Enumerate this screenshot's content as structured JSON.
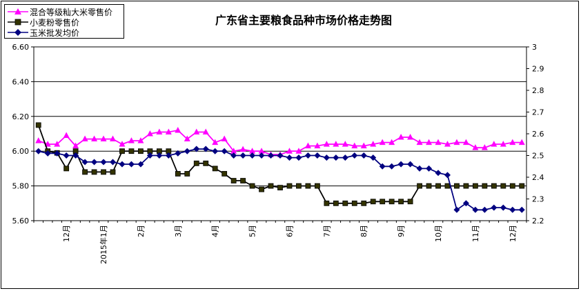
{
  "legend": [
    {
      "label": "混合等级籼大米零售价",
      "color": "#ff00ff",
      "marker": "triangle"
    },
    {
      "label": "小麦粉零售价",
      "color": "#000000",
      "marker": "square"
    },
    {
      "label": "玉米批发均价",
      "color": "#000080",
      "marker": "diamond"
    }
  ],
  "chart_data": {
    "type": "line",
    "title": "广东省主要粮食品种市场价格走势图",
    "xlabel": "",
    "ylabel": "",
    "ylim": [
      5.6,
      6.6
    ],
    "y2lim": [
      2.2,
      3.0
    ],
    "y_ticks": [
      "6.60",
      "6.40",
      "6.20",
      "6.00",
      "5.80",
      "5.60"
    ],
    "y2_ticks": [
      "3",
      "2.9",
      "2.8",
      "2.7",
      "2.6",
      "2.5",
      "2.4",
      "2.3",
      "2.2"
    ],
    "x_month_labels": [
      {
        "label": "12月",
        "at": 3.5
      },
      {
        "label": "2015年1月",
        "at": 7.5
      },
      {
        "label": "2月",
        "at": 11.5
      },
      {
        "label": "3月",
        "at": 15.5
      },
      {
        "label": "4月",
        "at": 19.5
      },
      {
        "label": "5月",
        "at": 23.5
      },
      {
        "label": "6月",
        "at": 27.5
      },
      {
        "label": "7月",
        "at": 31.5
      },
      {
        "label": "8月",
        "at": 35.5
      },
      {
        "label": "9月",
        "at": 39.5
      },
      {
        "label": "10月",
        "at": 43.5
      },
      {
        "label": "11月",
        "at": 47.5
      },
      {
        "label": "12月",
        "at": 51.5
      }
    ],
    "grid": "horizontal-major",
    "legend_position": "top-left",
    "series": [
      {
        "name": "混合等级籼大米零售价",
        "axis": "left",
        "color": "#ff00ff",
        "marker": "triangle",
        "values": [
          6.06,
          6.04,
          6.04,
          6.09,
          6.03,
          6.07,
          6.07,
          6.07,
          6.07,
          6.04,
          6.06,
          6.06,
          6.1,
          6.11,
          6.11,
          6.12,
          6.07,
          6.11,
          6.11,
          6.05,
          6.07,
          6.0,
          6.01,
          6.0,
          6.0,
          5.98,
          5.98,
          6.0,
          6.0,
          6.03,
          6.03,
          6.04,
          6.04,
          6.04,
          6.03,
          6.03,
          6.04,
          6.05,
          6.05,
          6.08,
          6.08,
          6.05,
          6.05,
          6.05,
          6.04,
          6.05,
          6.05,
          6.02,
          6.02,
          6.04,
          6.04,
          6.05,
          6.05
        ]
      },
      {
        "name": "小麦粉零售价",
        "axis": "left",
        "color": "#000000",
        "marker": "square",
        "values": [
          6.15,
          6.0,
          5.99,
          5.9,
          6.0,
          5.88,
          5.88,
          5.88,
          5.88,
          6.0,
          6.0,
          6.0,
          6.0,
          6.0,
          6.0,
          5.87,
          5.87,
          5.93,
          5.93,
          5.9,
          5.87,
          5.83,
          5.83,
          5.8,
          5.78,
          5.8,
          5.79,
          5.8,
          5.8,
          5.8,
          5.8,
          5.7,
          5.7,
          5.7,
          5.7,
          5.7,
          5.71,
          5.71,
          5.71,
          5.71,
          5.71,
          5.8,
          5.8,
          5.8,
          5.8,
          5.8,
          5.8,
          5.8,
          5.8,
          5.8,
          5.8,
          5.8,
          5.8
        ]
      },
      {
        "name": "玉米批发均价",
        "axis": "right",
        "color": "#000080",
        "marker": "diamond",
        "values": [
          2.52,
          2.51,
          2.51,
          2.5,
          2.5,
          2.47,
          2.47,
          2.47,
          2.47,
          2.46,
          2.46,
          2.46,
          2.5,
          2.5,
          2.5,
          2.51,
          2.52,
          2.53,
          2.53,
          2.52,
          2.52,
          2.5,
          2.5,
          2.5,
          2.5,
          2.5,
          2.5,
          2.49,
          2.49,
          2.5,
          2.5,
          2.49,
          2.49,
          2.49,
          2.5,
          2.5,
          2.49,
          2.45,
          2.45,
          2.46,
          2.46,
          2.44,
          2.44,
          2.42,
          2.41,
          2.25,
          2.28,
          2.25,
          2.25,
          2.26,
          2.26,
          2.25,
          2.25
        ]
      }
    ]
  }
}
